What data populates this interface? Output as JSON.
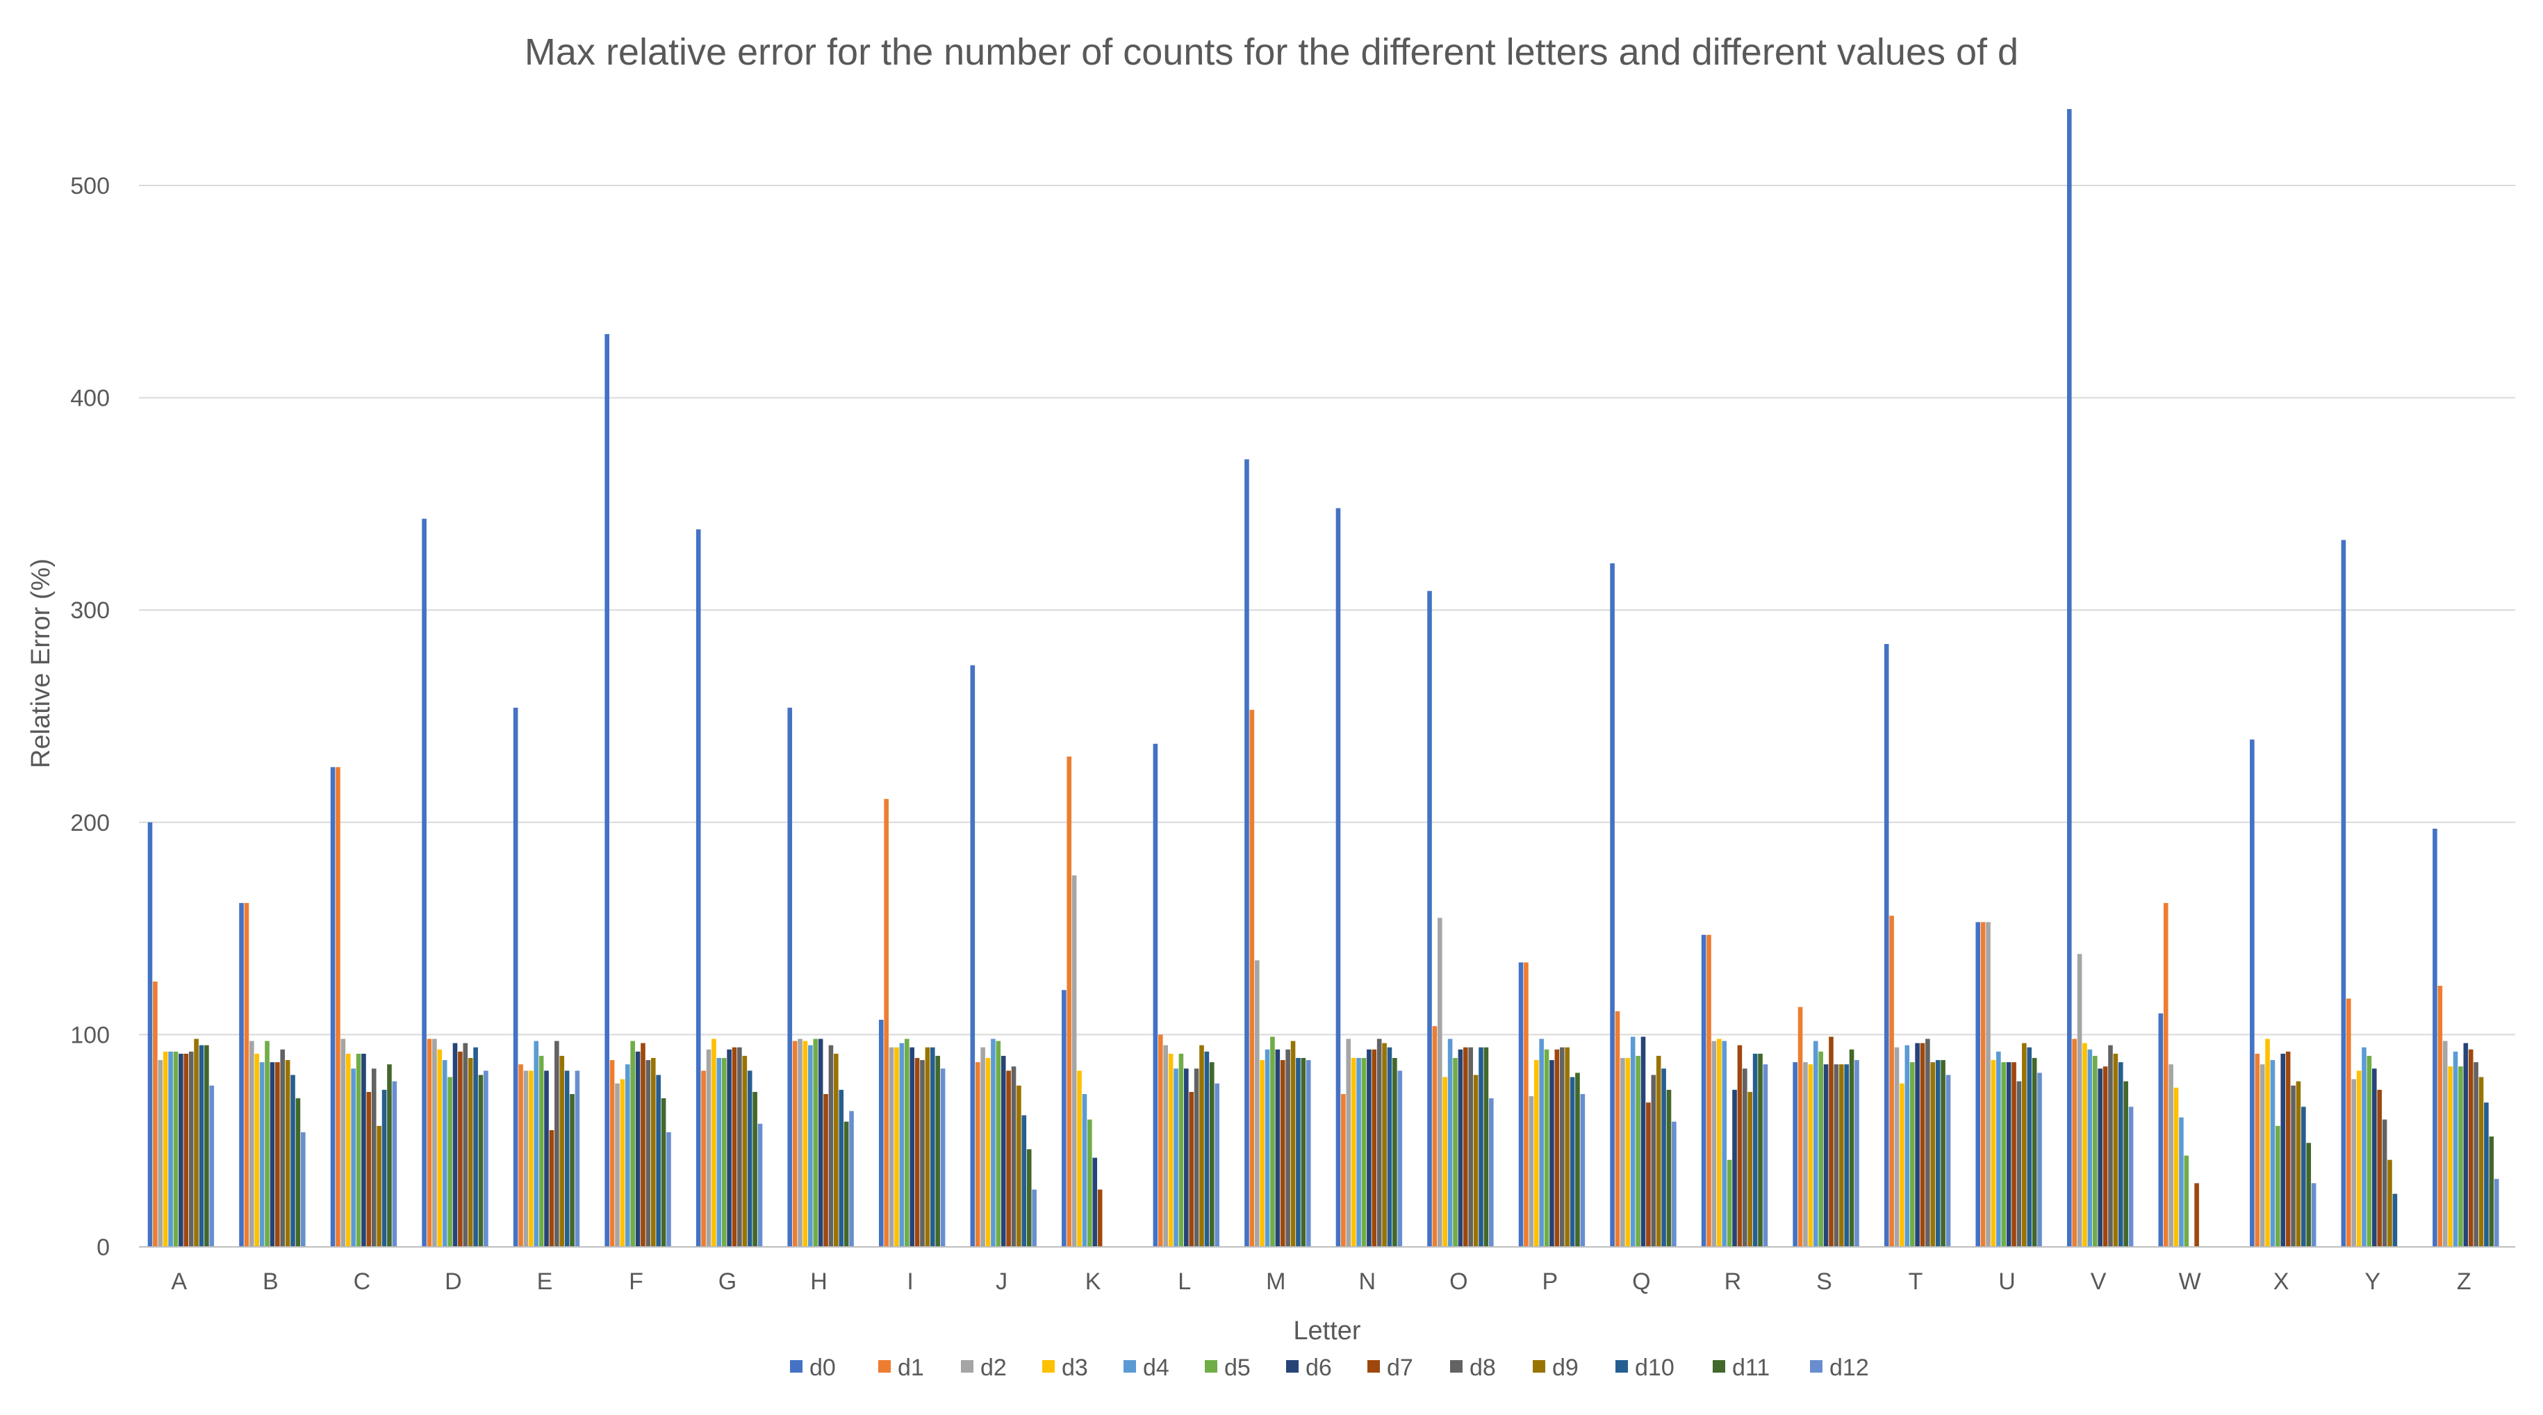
{
  "chart_data": {
    "type": "bar",
    "title": "Max relative error for the number of counts for the different letters and different values of d",
    "xlabel": "Letter",
    "ylabel": "Relative Error (%)",
    "ylim": [
      0,
      550
    ],
    "yticks": [
      0,
      100,
      200,
      300,
      400,
      500
    ],
    "grid": true,
    "legend_position": "bottom",
    "categories": [
      "A",
      "B",
      "C",
      "D",
      "E",
      "F",
      "G",
      "H",
      "I",
      "J",
      "K",
      "L",
      "M",
      "N",
      "O",
      "P",
      "Q",
      "R",
      "S",
      "T",
      "U",
      "V",
      "W",
      "X",
      "Y",
      "Z"
    ],
    "colors": [
      "#4472C4",
      "#ED7D31",
      "#A5A5A5",
      "#FFC000",
      "#5B9BD5",
      "#70AD47",
      "#264478",
      "#9E480E",
      "#636363",
      "#997300",
      "#255E91",
      "#43682B",
      "#698ED0"
    ],
    "series": [
      {
        "name": "d0",
        "values": [
          200,
          162,
          226,
          343,
          254,
          430,
          338,
          254,
          107,
          274,
          121,
          237,
          371,
          348,
          309,
          134,
          322,
          147,
          87,
          284,
          153,
          536,
          110,
          239,
          333,
          197
        ]
      },
      {
        "name": "d1",
        "values": [
          125,
          162,
          226,
          98,
          86,
          88,
          83,
          97,
          211,
          87,
          231,
          100,
          253,
          72,
          104,
          134,
          111,
          147,
          113,
          156,
          153,
          98,
          162,
          91,
          117,
          123
        ]
      },
      {
        "name": "d2",
        "values": [
          88,
          97,
          98,
          98,
          83,
          77,
          93,
          98,
          94,
          94,
          175,
          95,
          135,
          98,
          155,
          71,
          89,
          97,
          87,
          94,
          153,
          138,
          86,
          86,
          79,
          97
        ]
      },
      {
        "name": "d3",
        "values": [
          92,
          91,
          91,
          93,
          83,
          79,
          98,
          97,
          94,
          89,
          83,
          91,
          88,
          89,
          80,
          88,
          89,
          98,
          86,
          77,
          88,
          96,
          75,
          98,
          83,
          85
        ]
      },
      {
        "name": "d4",
        "values": [
          92,
          87,
          84,
          88,
          97,
          86,
          89,
          95,
          96,
          98,
          72,
          84,
          93,
          89,
          98,
          98,
          99,
          97,
          97,
          95,
          92,
          93,
          61,
          88,
          94,
          92
        ]
      },
      {
        "name": "d5",
        "values": [
          92,
          97,
          91,
          80,
          90,
          97,
          89,
          98,
          98,
          97,
          60,
          91,
          99,
          89,
          89,
          93,
          90,
          41,
          92,
          87,
          87,
          90,
          43,
          57,
          90,
          85
        ]
      },
      {
        "name": "d6",
        "values": [
          91,
          87,
          91,
          96,
          83,
          92,
          93,
          98,
          94,
          90,
          42,
          84,
          93,
          93,
          93,
          88,
          99,
          74,
          86,
          96,
          87,
          84,
          0,
          91,
          84,
          96
        ]
      },
      {
        "name": "d7",
        "values": [
          91,
          87,
          73,
          92,
          55,
          96,
          94,
          72,
          89,
          83,
          27,
          73,
          88,
          93,
          94,
          93,
          68,
          95,
          99,
          96,
          87,
          85,
          30,
          92,
          74,
          93
        ]
      },
      {
        "name": "d8",
        "values": [
          92,
          93,
          84,
          96,
          97,
          88,
          94,
          95,
          88,
          85,
          0,
          84,
          93,
          98,
          94,
          94,
          81,
          84,
          86,
          98,
          78,
          95,
          0,
          76,
          60,
          87
        ]
      },
      {
        "name": "d9",
        "values": [
          98,
          88,
          57,
          89,
          90,
          89,
          90,
          91,
          94,
          76,
          0,
          95,
          97,
          96,
          81,
          94,
          90,
          73,
          86,
          87,
          96,
          91,
          0,
          78,
          41,
          80
        ]
      },
      {
        "name": "d10",
        "values": [
          95,
          81,
          74,
          94,
          83,
          81,
          83,
          74,
          94,
          62,
          0,
          92,
          89,
          94,
          94,
          80,
          84,
          91,
          86,
          88,
          94,
          87,
          0,
          66,
          25,
          68
        ]
      },
      {
        "name": "d11",
        "values": [
          95,
          70,
          86,
          81,
          72,
          70,
          73,
          59,
          90,
          46,
          0,
          87,
          89,
          89,
          94,
          82,
          74,
          91,
          93,
          88,
          89,
          78,
          0,
          49,
          0,
          52
        ]
      },
      {
        "name": "d12",
        "values": [
          76,
          54,
          78,
          83,
          83,
          54,
          58,
          64,
          84,
          27,
          0,
          77,
          88,
          83,
          70,
          72,
          59,
          86,
          88,
          81,
          82,
          66,
          0,
          30,
          0,
          32
        ]
      }
    ]
  }
}
